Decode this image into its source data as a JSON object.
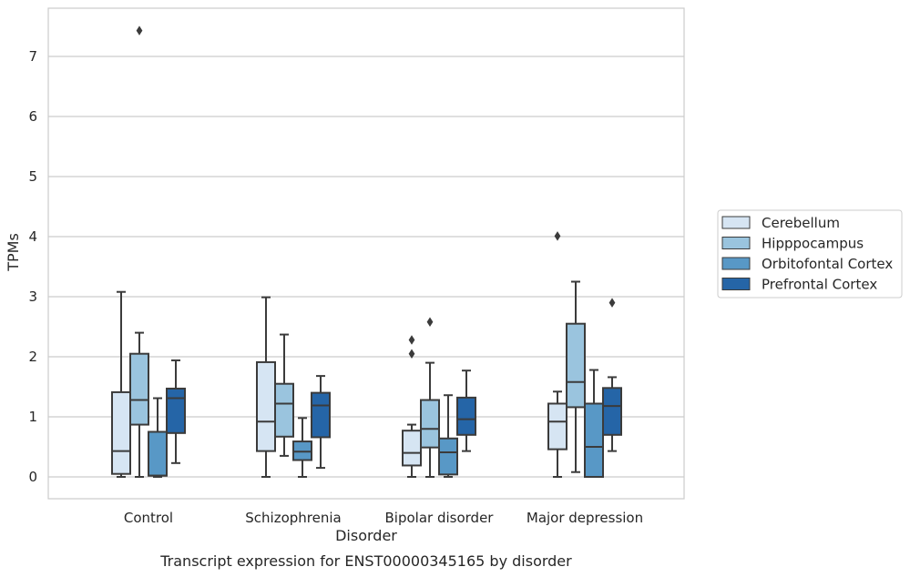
{
  "chart_data": {
    "type": "box",
    "title": "",
    "caption": "Transcript expression for ENST00000345165 by disorder",
    "xlabel": "Disorder",
    "ylabel": "TPMs",
    "ylim": [
      -0.35,
      7.8
    ],
    "yticks": [
      0,
      1,
      2,
      3,
      4,
      5,
      6,
      7
    ],
    "grid": "horizontal",
    "legend_position": "right",
    "categories": [
      "Control",
      "Schizophrenia",
      "Bipolar disorder",
      "Major depression"
    ],
    "series": [
      {
        "name": "Cerebellum",
        "color": "#d6e5f3",
        "boxes": [
          {
            "whisker_low": 0.0,
            "q1": 0.05,
            "median": 0.43,
            "q3": 1.41,
            "whisker_high": 3.08,
            "outliers": []
          },
          {
            "whisker_low": 0.0,
            "q1": 0.43,
            "median": 0.92,
            "q3": 1.91,
            "whisker_high": 2.99,
            "outliers": []
          },
          {
            "whisker_low": 0.0,
            "q1": 0.19,
            "median": 0.4,
            "q3": 0.77,
            "whisker_high": 0.87,
            "outliers": [
              2.05,
              2.28
            ]
          },
          {
            "whisker_low": 0.0,
            "q1": 0.46,
            "median": 0.92,
            "q3": 1.22,
            "whisker_high": 1.42,
            "outliers": [
              4.01
            ]
          }
        ]
      },
      {
        "name": "Hipppocampus",
        "color": "#9ac4de",
        "boxes": [
          {
            "whisker_low": 0.0,
            "q1": 0.87,
            "median": 1.28,
            "q3": 2.05,
            "whisker_high": 2.4,
            "outliers": [
              7.43
            ]
          },
          {
            "whisker_low": 0.35,
            "q1": 0.67,
            "median": 1.22,
            "q3": 1.55,
            "whisker_high": 2.37,
            "outliers": []
          },
          {
            "whisker_low": 0.0,
            "q1": 0.49,
            "median": 0.8,
            "q3": 1.28,
            "whisker_high": 1.9,
            "outliers": [
              2.58
            ]
          },
          {
            "whisker_low": 0.08,
            "q1": 1.16,
            "median": 1.58,
            "q3": 2.55,
            "whisker_high": 3.25,
            "outliers": []
          }
        ]
      },
      {
        "name": "Orbitofontal Cortex",
        "color": "#5898c6",
        "boxes": [
          {
            "whisker_low": 0.0,
            "q1": 0.02,
            "median": 0.02,
            "q3": 0.75,
            "whisker_high": 1.31,
            "outliers": []
          },
          {
            "whisker_low": 0.0,
            "q1": 0.28,
            "median": 0.42,
            "q3": 0.59,
            "whisker_high": 0.98,
            "outliers": []
          },
          {
            "whisker_low": 0.0,
            "q1": 0.04,
            "median": 0.41,
            "q3": 0.64,
            "whisker_high": 1.36,
            "outliers": []
          },
          {
            "whisker_low": 0.0,
            "q1": 0.0,
            "median": 0.5,
            "q3": 1.22,
            "whisker_high": 1.78,
            "outliers": []
          }
        ]
      },
      {
        "name": "Prefrontal Cortex",
        "color": "#2565a7",
        "boxes": [
          {
            "whisker_low": 0.23,
            "q1": 0.73,
            "median": 1.31,
            "q3": 1.47,
            "whisker_high": 1.94,
            "outliers": []
          },
          {
            "whisker_low": 0.15,
            "q1": 0.66,
            "median": 1.19,
            "q3": 1.4,
            "whisker_high": 1.68,
            "outliers": []
          },
          {
            "whisker_low": 0.43,
            "q1": 0.7,
            "median": 0.96,
            "q3": 1.32,
            "whisker_high": 1.77,
            "outliers": []
          },
          {
            "whisker_low": 0.43,
            "q1": 0.7,
            "median": 1.18,
            "q3": 1.48,
            "whisker_high": 1.66,
            "outliers": [
              2.9
            ]
          }
        ]
      }
    ]
  }
}
